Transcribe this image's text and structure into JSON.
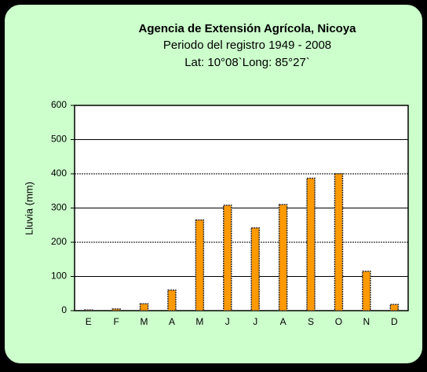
{
  "chart_data": {
    "type": "bar",
    "title": "Agencia de Extensión Agrícola, Nicoya",
    "subtitle": "Periodo del registro 1949 - 2008",
    "annotation": "Lat: 10°08`Long: 85°27`",
    "y_label": "Lluvia (mm)",
    "categories": [
      "E",
      "F",
      "M",
      "A",
      "M",
      "J",
      "J",
      "A",
      "S",
      "O",
      "N",
      "D"
    ],
    "values": [
      2,
      5,
      20,
      60,
      265,
      308,
      242,
      310,
      387,
      400,
      115,
      18
    ],
    "color": "#ff9900",
    "ylim": [
      0,
      600
    ],
    "yticks": [
      0,
      100,
      200,
      300,
      400,
      500,
      600
    ],
    "grid": true
  }
}
